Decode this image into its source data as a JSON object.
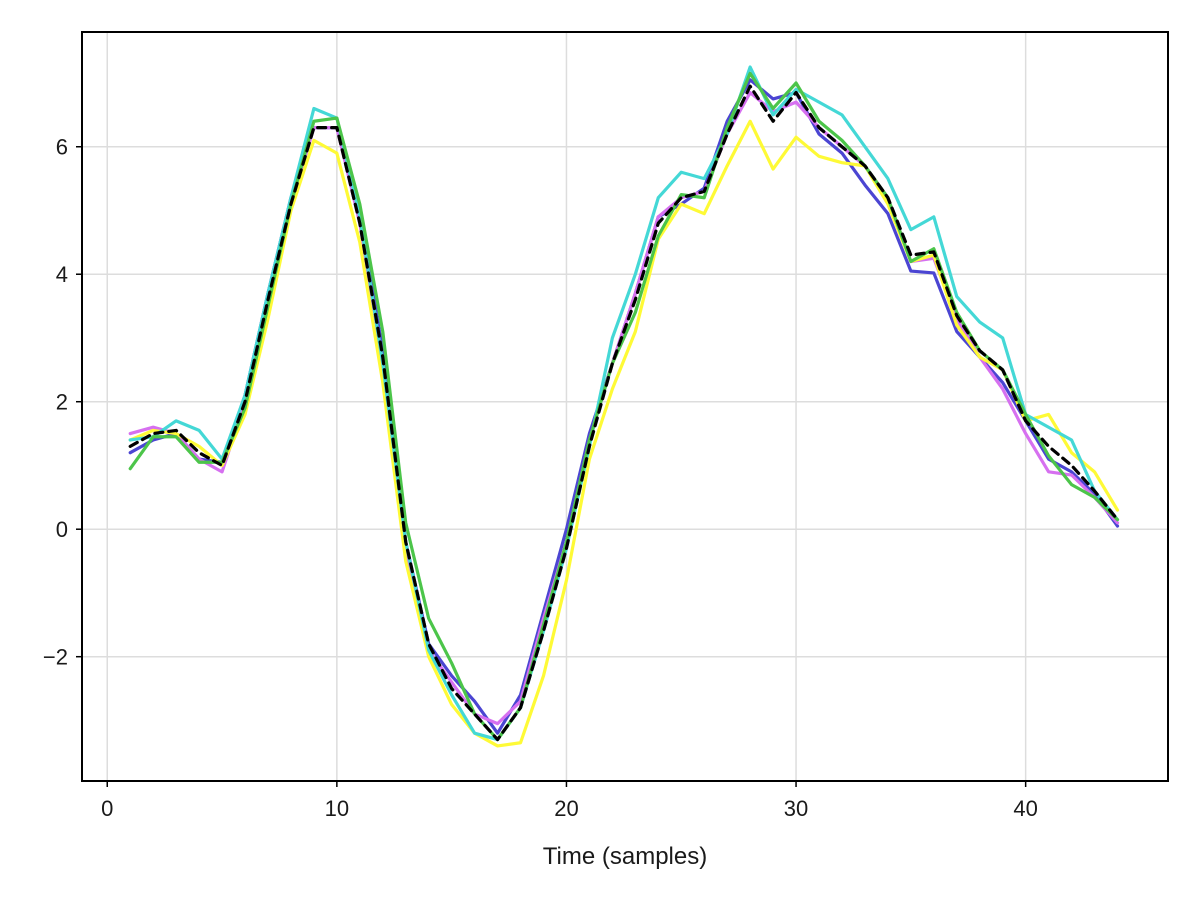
{
  "chart_data": {
    "type": "line",
    "title": "",
    "xlabel": "Time (samples)",
    "ylabel": "",
    "xlim": [
      -1.1,
      46.2
    ],
    "ylim": [
      -3.95,
      7.8
    ],
    "xticks": [
      0,
      10,
      20,
      30,
      40
    ],
    "yticks": [
      -2,
      0,
      2,
      4,
      6
    ],
    "grid": true,
    "legend": "none",
    "x": [
      1,
      2,
      3,
      4,
      5,
      6,
      7,
      8,
      9,
      10,
      11,
      12,
      13,
      14,
      15,
      16,
      17,
      18,
      19,
      20,
      21,
      22,
      23,
      24,
      25,
      26,
      27,
      28,
      29,
      30,
      31,
      32,
      33,
      34,
      35,
      36,
      37,
      38,
      39,
      40,
      41,
      42,
      43,
      44
    ],
    "series": [
      {
        "color": "#4b45d2",
        "dashed": false,
        "values": [
          1.2,
          1.4,
          1.5,
          1.1,
          1.05,
          2.1,
          3.7,
          5.2,
          6.3,
          6.3,
          4.9,
          2.8,
          -0.2,
          -1.8,
          -2.3,
          -2.7,
          -3.2,
          -2.6,
          -1.3,
          0.0,
          1.5,
          2.6,
          3.7,
          4.9,
          5.1,
          5.35,
          6.4,
          7.05,
          6.75,
          6.85,
          6.2,
          5.9,
          5.4,
          4.95,
          4.05,
          4.02,
          3.1,
          2.7,
          2.3,
          1.7,
          1.1,
          0.9,
          0.55,
          0.05
        ]
      },
      {
        "color": "#d670f0",
        "dashed": false,
        "values": [
          1.5,
          1.6,
          1.5,
          1.1,
          0.9,
          2.0,
          3.6,
          5.1,
          6.3,
          6.3,
          4.8,
          2.6,
          -0.3,
          -1.9,
          -2.4,
          -2.9,
          -3.05,
          -2.7,
          -1.4,
          -0.2,
          1.4,
          2.6,
          3.7,
          4.9,
          5.2,
          5.3,
          6.2,
          6.85,
          6.55,
          6.7,
          6.3,
          6.0,
          5.7,
          5.2,
          4.2,
          4.25,
          3.3,
          2.7,
          2.2,
          1.5,
          0.9,
          0.85,
          0.5,
          0.1
        ]
      },
      {
        "color": "#fefa36",
        "dashed": false,
        "values": [
          1.4,
          1.55,
          1.5,
          1.3,
          1.0,
          1.8,
          3.3,
          5.0,
          6.1,
          5.9,
          4.5,
          2.3,
          -0.5,
          -2.0,
          -2.75,
          -3.2,
          -3.4,
          -3.35,
          -2.3,
          -0.8,
          1.1,
          2.2,
          3.1,
          4.55,
          5.1,
          4.95,
          5.7,
          6.4,
          5.65,
          6.15,
          5.85,
          5.75,
          5.7,
          5.1,
          4.2,
          4.3,
          3.2,
          2.7,
          2.5,
          1.7,
          1.8,
          1.2,
          0.9,
          0.3
        ]
      },
      {
        "color": "#44d8d6",
        "dashed": false,
        "values": [
          1.4,
          1.45,
          1.7,
          1.55,
          1.1,
          2.1,
          3.7,
          5.2,
          6.6,
          6.45,
          4.9,
          2.6,
          -0.2,
          -1.9,
          -2.6,
          -3.2,
          -3.3,
          -2.8,
          -1.6,
          -0.3,
          1.3,
          3.0,
          4.0,
          5.2,
          5.6,
          5.5,
          6.2,
          7.25,
          6.5,
          6.9,
          6.7,
          6.5,
          6.0,
          5.5,
          4.7,
          4.9,
          3.65,
          3.25,
          3.0,
          1.8,
          1.6,
          1.4,
          0.6,
          0.15
        ]
      },
      {
        "color": "#4cc54a",
        "dashed": false,
        "values": [
          0.95,
          1.45,
          1.45,
          1.05,
          1.05,
          1.9,
          3.5,
          5.1,
          6.4,
          6.45,
          5.1,
          3.1,
          0.1,
          -1.4,
          -2.1,
          -2.9,
          -3.3,
          -2.8,
          -1.5,
          -0.2,
          1.4,
          2.6,
          3.4,
          4.6,
          5.25,
          5.2,
          6.3,
          7.15,
          6.6,
          7.0,
          6.4,
          6.1,
          5.7,
          5.2,
          4.2,
          4.4,
          3.4,
          2.8,
          2.5,
          1.8,
          1.15,
          0.7,
          0.5,
          0.15
        ]
      },
      {
        "color": "#000000",
        "dashed": true,
        "values": [
          1.3,
          1.5,
          1.55,
          1.2,
          1.0,
          2.0,
          3.6,
          5.1,
          6.3,
          6.3,
          4.8,
          2.7,
          -0.2,
          -1.8,
          -2.5,
          -2.9,
          -3.3,
          -2.8,
          -1.6,
          -0.3,
          1.3,
          2.6,
          3.6,
          4.8,
          5.2,
          5.3,
          6.2,
          6.95,
          6.4,
          6.85,
          6.3,
          6.0,
          5.7,
          5.2,
          4.3,
          4.35,
          3.35,
          2.8,
          2.5,
          1.7,
          1.3,
          1.0,
          0.6,
          0.15
        ]
      }
    ]
  }
}
